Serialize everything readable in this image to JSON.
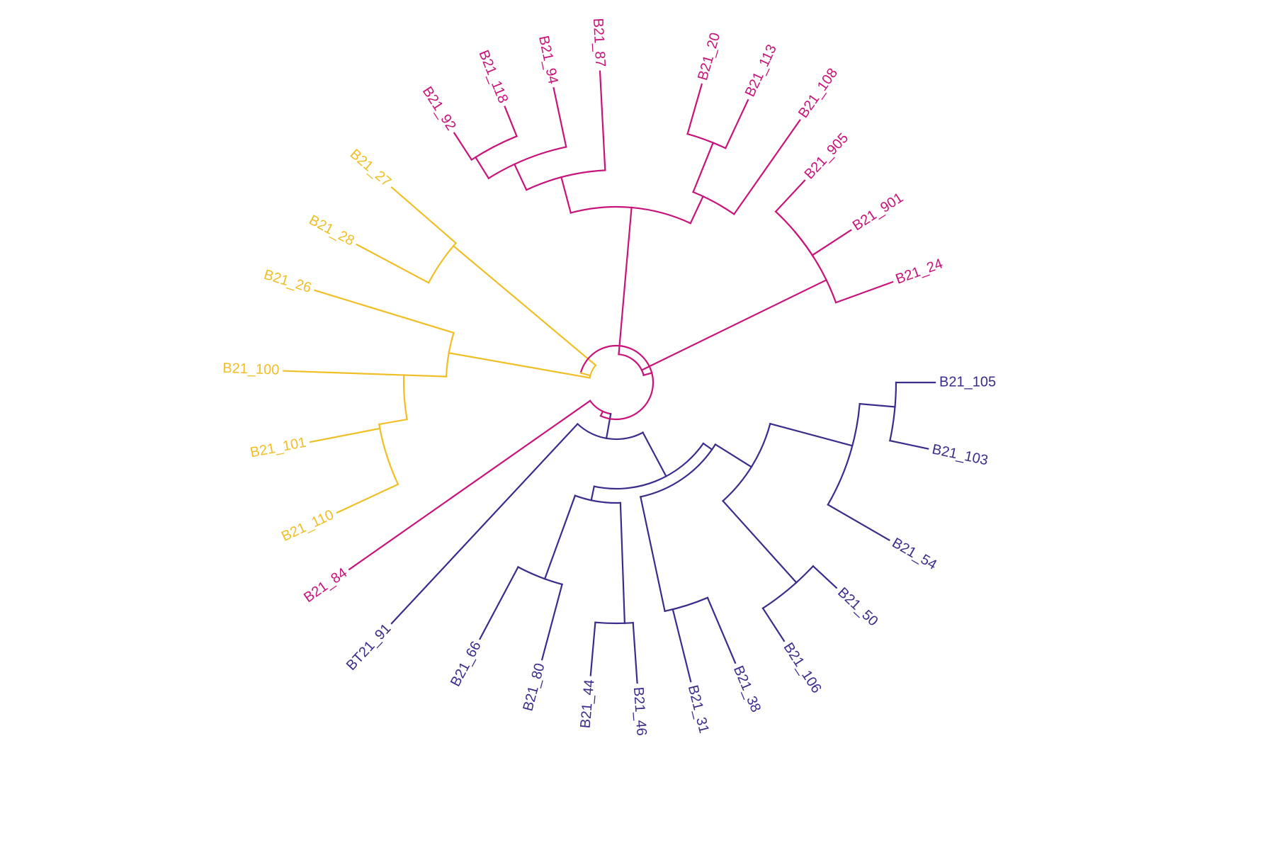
{
  "colors": {
    "magenta": "#C8137A",
    "yellow": "#F0BE25",
    "indigo": "#3B2C8C"
  },
  "tips": [
    {
      "id": "t0",
      "label": "B21_24",
      "color": "magenta"
    },
    {
      "id": "t1",
      "label": "B21_901",
      "color": "magenta"
    },
    {
      "id": "t2",
      "label": "B21_905",
      "color": "magenta"
    },
    {
      "id": "t3",
      "label": "B21_108",
      "color": "magenta"
    },
    {
      "id": "t4",
      "label": "B21_113",
      "color": "magenta"
    },
    {
      "id": "t5",
      "label": "B21_20",
      "color": "magenta"
    },
    {
      "id": "t6",
      "label": "B21_87",
      "color": "magenta"
    },
    {
      "id": "t7",
      "label": "B21_94",
      "color": "magenta"
    },
    {
      "id": "t8",
      "label": "B21_118",
      "color": "magenta"
    },
    {
      "id": "t9",
      "label": "B21_92",
      "color": "magenta"
    },
    {
      "id": "t10",
      "label": "B21_27",
      "color": "yellow"
    },
    {
      "id": "t11",
      "label": "B21_28",
      "color": "yellow"
    },
    {
      "id": "t12",
      "label": "B21_26",
      "color": "yellow"
    },
    {
      "id": "t13",
      "label": "B21_100",
      "color": "yellow"
    },
    {
      "id": "t14",
      "label": "B21_101",
      "color": "yellow"
    },
    {
      "id": "t15",
      "label": "B21_110",
      "color": "yellow"
    },
    {
      "id": "t16",
      "label": "B21_84",
      "color": "magenta"
    },
    {
      "id": "t17",
      "label": "BT21_91",
      "color": "indigo"
    },
    {
      "id": "t18",
      "label": "B21_66",
      "color": "indigo"
    },
    {
      "id": "t19",
      "label": "B21_80",
      "color": "indigo"
    },
    {
      "id": "t20",
      "label": "B21_44",
      "color": "indigo"
    },
    {
      "id": "t21",
      "label": "B21_46",
      "color": "indigo"
    },
    {
      "id": "t22",
      "label": "B21_31",
      "color": "indigo"
    },
    {
      "id": "t23",
      "label": "B21_38",
      "color": "indigo"
    },
    {
      "id": "t24",
      "label": "B21_106",
      "color": "indigo"
    },
    {
      "id": "t25",
      "label": "B21_50",
      "color": "indigo"
    },
    {
      "id": "t26",
      "label": "B21_54",
      "color": "indigo"
    },
    {
      "id": "t27",
      "label": "B21_103",
      "color": "indigo"
    },
    {
      "id": "t28",
      "label": "B21_105",
      "color": "indigo"
    }
  ],
  "internal_nodes": [
    {
      "id": "n_mag1",
      "children": [
        "t1",
        "t2"
      ],
      "color": "magenta"
    },
    {
      "id": "n_mag2",
      "children": [
        "t0",
        "n_mag1"
      ],
      "color": "magenta"
    },
    {
      "id": "n_20_113",
      "children": [
        "t4",
        "t5"
      ],
      "color": "magenta"
    },
    {
      "id": "n_108",
      "children": [
        "t3",
        "n_20_113"
      ],
      "color": "magenta"
    },
    {
      "id": "n_92_118",
      "children": [
        "t8",
        "t9"
      ],
      "color": "magenta"
    },
    {
      "id": "n_94",
      "children": [
        "t7",
        "n_92_118"
      ],
      "color": "magenta"
    },
    {
      "id": "n_87",
      "children": [
        "t6",
        "n_94"
      ],
      "color": "magenta"
    },
    {
      "id": "n_big",
      "children": [
        "n_108",
        "n_87"
      ],
      "color": "magenta"
    },
    {
      "id": "n_27_28",
      "children": [
        "t10",
        "t11"
      ],
      "color": "yellow"
    },
    {
      "id": "n_101_110",
      "children": [
        "t14",
        "t15"
      ],
      "color": "yellow"
    },
    {
      "id": "n_100",
      "children": [
        "t13",
        "n_101_110"
      ],
      "color": "yellow"
    },
    {
      "id": "n_26",
      "children": [
        "t12",
        "n_100"
      ],
      "color": "yellow"
    },
    {
      "id": "n_yel",
      "children": [
        "n_27_28",
        "n_26"
      ],
      "color": "yellow"
    },
    {
      "id": "n_66_80",
      "children": [
        "t18",
        "t19"
      ],
      "color": "indigo"
    },
    {
      "id": "n_44_46",
      "children": [
        "t20",
        "t21"
      ],
      "color": "indigo"
    },
    {
      "id": "n_4",
      "children": [
        "n_66_80",
        "n_44_46"
      ],
      "color": "indigo"
    },
    {
      "id": "n_31_38",
      "children": [
        "t22",
        "t23"
      ],
      "color": "indigo"
    },
    {
      "id": "n_106_50",
      "children": [
        "t24",
        "t25"
      ],
      "color": "indigo"
    },
    {
      "id": "n_103_105",
      "children": [
        "t27",
        "t28"
      ],
      "color": "indigo"
    },
    {
      "id": "n_54",
      "children": [
        "t26",
        "n_103_105"
      ],
      "color": "indigo"
    },
    {
      "id": "n_r1",
      "children": [
        "n_106_50",
        "n_54"
      ],
      "color": "indigo"
    },
    {
      "id": "n_r2",
      "children": [
        "n_31_38",
        "n_r1"
      ],
      "color": "indigo"
    },
    {
      "id": "n_ind",
      "children": [
        "n_4",
        "n_r2"
      ],
      "color": "indigo"
    },
    {
      "id": "n_ind2",
      "children": [
        "t17",
        "n_ind"
      ],
      "color": "indigo"
    },
    {
      "id": "n_84",
      "children": [
        "t16",
        "n_ind2"
      ],
      "color": "magenta"
    },
    {
      "id": "n_top",
      "children": [
        "n_mag2",
        "n_big"
      ],
      "color": "magenta"
    },
    {
      "id": "root",
      "children": [
        "n_yel",
        "n_top",
        "n_84"
      ],
      "color": "magenta"
    }
  ]
}
